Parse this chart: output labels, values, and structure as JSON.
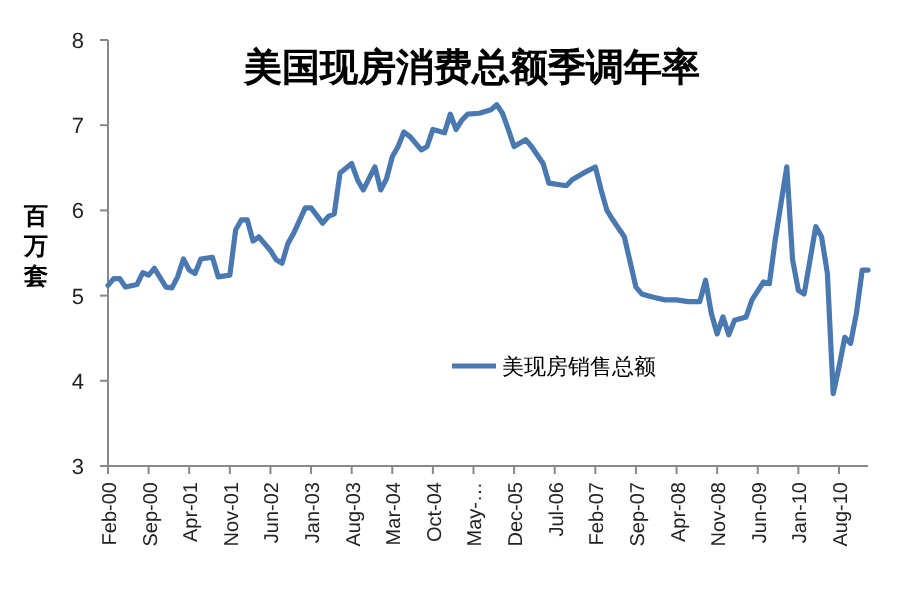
{
  "chart_data": {
    "type": "line",
    "title": "美国现房消费总额季调年率",
    "ylabel": "百万套",
    "x": [
      "2000-02",
      "2000-03",
      "2000-04",
      "2000-05",
      "2000-07",
      "2000-08",
      "2000-09",
      "2000-10",
      "2000-12",
      "2001-01",
      "2001-02",
      "2001-03",
      "2001-04",
      "2001-05",
      "2001-06",
      "2001-08",
      "2001-09",
      "2001-11",
      "2001-12",
      "2002-01",
      "2002-02",
      "2002-03",
      "2002-04",
      "2002-06",
      "2002-07",
      "2002-08",
      "2002-09",
      "2002-10",
      "2002-12",
      "2003-01",
      "2003-03",
      "2003-04",
      "2003-05",
      "2003-06",
      "2003-08",
      "2003-09",
      "2003-10",
      "2003-12",
      "2004-01",
      "2004-02",
      "2004-03",
      "2004-04",
      "2004-05",
      "2004-06",
      "2004-08",
      "2004-09",
      "2004-10",
      "2004-12",
      "2005-01",
      "2005-02",
      "2005-03",
      "2005-04",
      "2005-06",
      "2005-08",
      "2005-09",
      "2005-10",
      "2005-11",
      "2005-12",
      "2006-02",
      "2006-03",
      "2006-05",
      "2006-06",
      "2006-09",
      "2006-10",
      "2006-12",
      "2007-02",
      "2007-03",
      "2007-04",
      "2007-05",
      "2007-07",
      "2007-09",
      "2007-10",
      "2007-12",
      "2008-02",
      "2008-04",
      "2008-06",
      "2008-08",
      "2008-09",
      "2008-10",
      "2008-11",
      "2008-12",
      "2009-01",
      "2009-02",
      "2009-04",
      "2009-05",
      "2009-07",
      "2009-08",
      "2009-09",
      "2009-11",
      "2009-12",
      "2010-01",
      "2010-02",
      "2010-04",
      "2010-05",
      "2010-06",
      "2010-07",
      "2010-08",
      "2010-09",
      "2010-10",
      "2010-11",
      "2010-12",
      "2011-01"
    ],
    "series": [
      {
        "name": "美现房销售总额",
        "color": "#4a78b0",
        "values": [
          5.12,
          5.2,
          5.2,
          5.1,
          5.13,
          5.27,
          5.24,
          5.32,
          5.1,
          5.09,
          5.22,
          5.43,
          5.3,
          5.26,
          5.43,
          5.45,
          5.22,
          5.24,
          5.77,
          5.89,
          5.89,
          5.64,
          5.69,
          5.53,
          5.42,
          5.38,
          5.61,
          5.73,
          6.03,
          6.03,
          5.85,
          5.93,
          5.96,
          6.44,
          6.55,
          6.36,
          6.24,
          6.51,
          6.24,
          6.37,
          6.63,
          6.75,
          6.92,
          6.87,
          6.71,
          6.75,
          6.95,
          6.91,
          7.13,
          6.95,
          7.06,
          7.13,
          7.14,
          7.18,
          7.24,
          7.14,
          6.95,
          6.75,
          6.83,
          6.75,
          6.55,
          6.32,
          6.29,
          6.36,
          6.44,
          6.51,
          6.24,
          6.0,
          5.89,
          5.69,
          5.1,
          5.02,
          4.98,
          4.95,
          4.95,
          4.93,
          4.93,
          5.18,
          4.79,
          4.55,
          4.75,
          4.54,
          4.71,
          4.75,
          4.95,
          5.16,
          5.14,
          5.65,
          6.51,
          5.42,
          5.06,
          5.02,
          5.81,
          5.69,
          5.26,
          3.85,
          4.16,
          4.51,
          4.44,
          4.79,
          5.3,
          5.3
        ]
      }
    ],
    "xlim": [
      "2000-02",
      "2011-01"
    ],
    "xticks": [
      {
        "value": "2000-02",
        "label": "Feb-00"
      },
      {
        "value": "2000-09",
        "label": "Sep-00"
      },
      {
        "value": "2001-04",
        "label": "Apr-01"
      },
      {
        "value": "2001-11",
        "label": "Nov-01"
      },
      {
        "value": "2002-06",
        "label": "Jun-02"
      },
      {
        "value": "2003-01",
        "label": "Jan-03"
      },
      {
        "value": "2003-08",
        "label": "Aug-03"
      },
      {
        "value": "2004-03",
        "label": "Mar-04"
      },
      {
        "value": "2004-10",
        "label": "Oct-04"
      },
      {
        "value": "2005-05",
        "label": "May-…"
      },
      {
        "value": "2005-12",
        "label": "Dec-05"
      },
      {
        "value": "2006-07",
        "label": "Jul-06"
      },
      {
        "value": "2007-02",
        "label": "Feb-07"
      },
      {
        "value": "2007-09",
        "label": "Sep-07"
      },
      {
        "value": "2008-04",
        "label": "Apr-08"
      },
      {
        "value": "2008-11",
        "label": "Nov-08"
      },
      {
        "value": "2009-06",
        "label": "Jun-09"
      },
      {
        "value": "2010-01",
        "label": "Jan-10"
      },
      {
        "value": "2010-08",
        "label": "Aug-10"
      }
    ],
    "ylim": [
      3,
      8
    ],
    "yticks": [
      3,
      4,
      5,
      6,
      7,
      8
    ],
    "grid": false,
    "legend": "center",
    "marker": "none",
    "line_style": "solid"
  }
}
